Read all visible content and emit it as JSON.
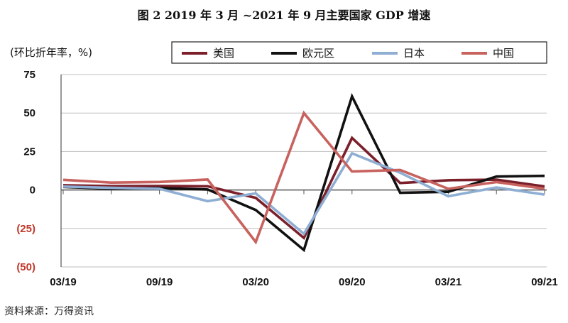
{
  "figure_title": "图 2  2019 年 3 月 ~2021 年 9 月主要国家 GDP 增速",
  "source_note": "资料来源：万得资讯",
  "colors": {
    "美国": "#7b1f2b",
    "欧元区": "#111111",
    "日本": "#8eaed3",
    "中国": "#c8625f",
    "negative_tick": "#c0392b",
    "axis": "#555555",
    "grid": "#bfbfbf"
  },
  "chart_data": {
    "type": "line",
    "ylabel": "(环比折年率，%)",
    "ylim": [
      -50,
      75
    ],
    "yticks": [
      75,
      50,
      25,
      0,
      -25,
      -50
    ],
    "ytick_labels": [
      "75",
      "50",
      "25",
      "0",
      "(25)",
      "(50)"
    ],
    "x": [
      "03/19",
      "06/19",
      "09/19",
      "12/19",
      "03/20",
      "06/20",
      "09/20",
      "12/20",
      "03/21",
      "06/21",
      "09/21"
    ],
    "xtick_labels": [
      "03/19",
      "09/19",
      "03/20",
      "09/20",
      "03/21",
      "09/21"
    ],
    "grid": true,
    "legend": "top",
    "series": [
      {
        "name": "美国",
        "values": [
          3.1,
          2.5,
          2.6,
          2.4,
          -5.1,
          -31.2,
          33.8,
          4.5,
          6.3,
          6.7,
          2.3
        ]
      },
      {
        "name": "欧元区",
        "values": [
          2.0,
          0.8,
          1.2,
          0.3,
          -13.0,
          -39.0,
          60.8,
          -1.8,
          -1.2,
          8.7,
          9.2
        ]
      },
      {
        "name": "日本",
        "values": [
          2.2,
          1.4,
          0.8,
          -7.3,
          -2.2,
          -28.5,
          23.8,
          11.2,
          -4.1,
          1.6,
          -3.0
        ]
      },
      {
        "name": "中国",
        "values": [
          6.6,
          4.8,
          5.2,
          6.8,
          -33.8,
          50.0,
          12.0,
          13.0,
          0.8,
          5.1,
          0.8
        ]
      }
    ]
  }
}
